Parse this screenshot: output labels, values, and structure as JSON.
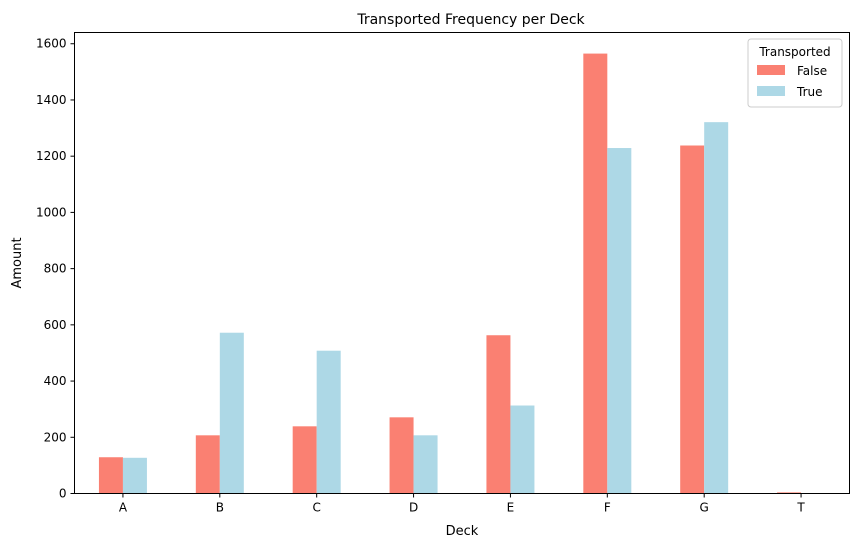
{
  "chart_data": {
    "type": "bar",
    "title": "Transported Frequency per Deck",
    "xlabel": "Deck",
    "ylabel": "Amount",
    "categories": [
      "A",
      "B",
      "C",
      "D",
      "E",
      "F",
      "G",
      "T"
    ],
    "series": [
      {
        "name": "False",
        "color": "#fa8072",
        "values": [
          129,
          207,
          239,
          271,
          563,
          1565,
          1238,
          4
        ]
      },
      {
        "name": "True",
        "color": "#add8e6",
        "values": [
          127,
          572,
          508,
          207,
          313,
          1229,
          1321,
          1
        ]
      }
    ],
    "ylim": [
      0,
      1640
    ],
    "yticks": [
      0,
      200,
      400,
      600,
      800,
      1000,
      1200,
      1400,
      1600
    ],
    "grid": false,
    "legend": {
      "title": "Transported",
      "placement": "top-right"
    }
  }
}
